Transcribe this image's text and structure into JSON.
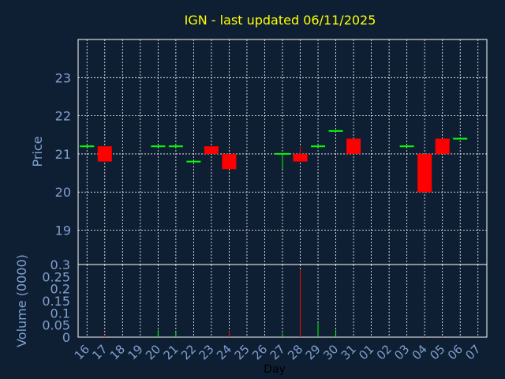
{
  "chart_data": {
    "type": "candlestick",
    "title": "IGN - last updated 06/11/2025",
    "xlabel": "Day",
    "colors": {
      "background": "#0f1f33",
      "title": "#ffff00",
      "axis_text": "#7f9fcf",
      "grid": "#ffffff",
      "up": "#00ff00",
      "down": "#ff0000"
    },
    "x_tick_labels": [
      "16",
      "17",
      "18",
      "19",
      "20",
      "21",
      "22",
      "23",
      "24",
      "25",
      "26",
      "27",
      "28",
      "29",
      "30",
      "31",
      "01",
      "02",
      "03",
      "04",
      "05",
      "06",
      "07"
    ],
    "price_panel": {
      "ylabel": "Price",
      "ylim": [
        18.1,
        24.0
      ],
      "y_ticks": [
        19,
        20,
        21,
        22,
        23
      ],
      "candles": [
        {
          "day": 0,
          "open": 21.2,
          "high": 21.2,
          "low": 21.2,
          "close": 21.2
        },
        {
          "day": 1,
          "open": 21.2,
          "high": 21.2,
          "low": 20.8,
          "close": 20.8
        },
        {
          "day": 4,
          "open": 21.2,
          "high": 21.2,
          "low": 21.2,
          "close": 21.2
        },
        {
          "day": 5,
          "open": 21.2,
          "high": 21.2,
          "low": 21.2,
          "close": 21.2
        },
        {
          "day": 6,
          "open": 20.8,
          "high": 20.8,
          "low": 20.8,
          "close": 20.8
        },
        {
          "day": 7,
          "open": 21.2,
          "high": 21.2,
          "low": 21.0,
          "close": 21.0
        },
        {
          "day": 8,
          "open": 21.0,
          "high": 21.0,
          "low": 20.6,
          "close": 20.6
        },
        {
          "day": 11,
          "open": 21.0,
          "high": 21.0,
          "low": 20.6,
          "close": 21.0
        },
        {
          "day": 12,
          "open": 21.0,
          "high": 21.2,
          "low": 20.8,
          "close": 20.8
        },
        {
          "day": 13,
          "open": 21.2,
          "high": 21.2,
          "low": 21.2,
          "close": 21.2
        },
        {
          "day": 14,
          "open": 21.6,
          "high": 21.6,
          "low": 21.6,
          "close": 21.6
        },
        {
          "day": 15,
          "open": 21.4,
          "high": 21.4,
          "low": 21.0,
          "close": 21.0
        },
        {
          "day": 18,
          "open": 21.2,
          "high": 21.2,
          "low": 21.2,
          "close": 21.2
        },
        {
          "day": 19,
          "open": 21.0,
          "high": 21.0,
          "low": 20.0,
          "close": 20.0
        },
        {
          "day": 20,
          "open": 21.4,
          "high": 21.4,
          "low": 21.0,
          "close": 21.0
        },
        {
          "day": 21,
          "open": 21.4,
          "high": 21.4,
          "low": 21.4,
          "close": 21.4
        }
      ]
    },
    "volume_panel": {
      "ylabel": "Volume (0000)",
      "ylim": [
        0,
        0.3
      ],
      "y_tick_labels": [
        "0",
        "0.05",
        "0.1",
        "0.15",
        "0.2",
        "0.25",
        "0.3"
      ],
      "bars": [
        {
          "day": 1,
          "value": 0.01,
          "dir": "down"
        },
        {
          "day": 4,
          "value": 0.03,
          "dir": "up"
        },
        {
          "day": 5,
          "value": 0.02,
          "dir": "up"
        },
        {
          "day": 8,
          "value": 0.025,
          "dir": "down"
        },
        {
          "day": 11,
          "value": 0.015,
          "dir": "up"
        },
        {
          "day": 12,
          "value": 0.28,
          "dir": "down"
        },
        {
          "day": 13,
          "value": 0.06,
          "dir": "up"
        },
        {
          "day": 14,
          "value": 0.03,
          "dir": "up"
        },
        {
          "day": 19,
          "value": 0.005,
          "dir": "down"
        },
        {
          "day": 20,
          "value": 0.005,
          "dir": "down"
        }
      ]
    }
  }
}
